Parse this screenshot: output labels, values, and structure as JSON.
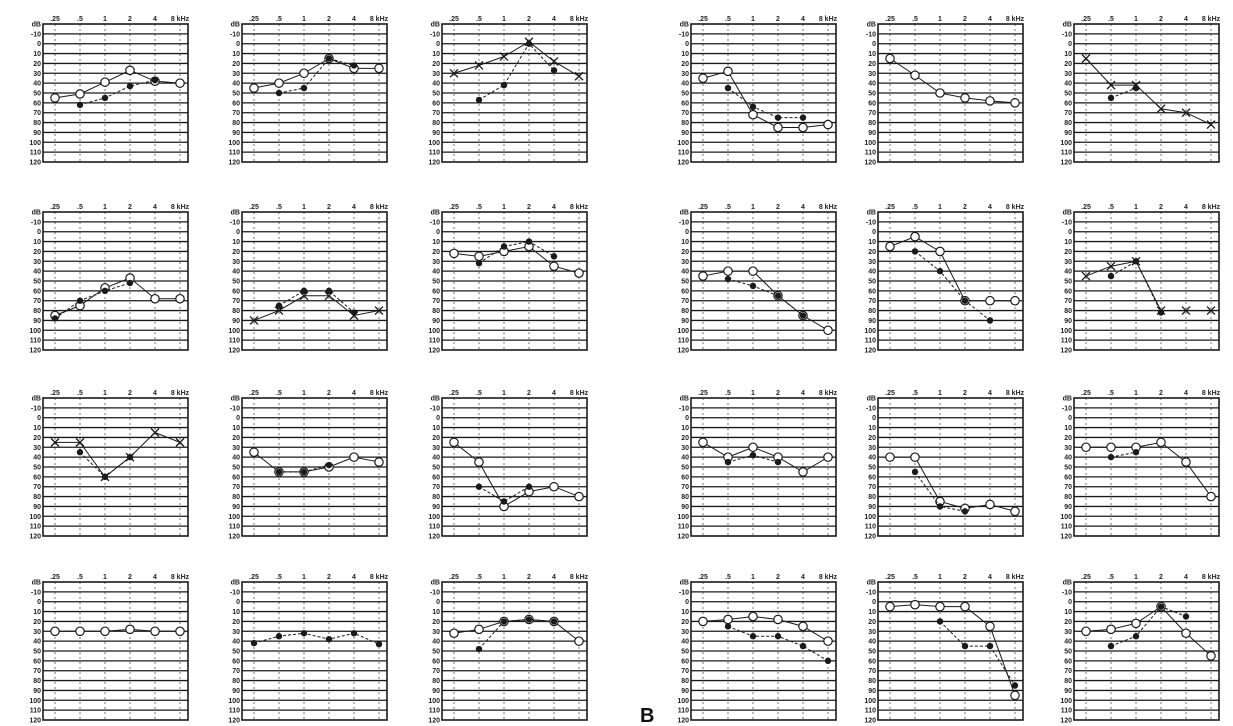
{
  "panel_label": "B",
  "chart_data": {
    "type": "line",
    "grid": true,
    "layout": "4 rows x 6 columns of audiograms",
    "x_unit": "kHz",
    "y_unit": "dB",
    "x_tick_labels": [
      ".25",
      ".5",
      "1",
      "2",
      "4",
      "8 kHz"
    ],
    "y_tick_labels": [
      "dB",
      "-10",
      "0",
      "10",
      "20",
      "30",
      "40",
      "50",
      "60",
      "70",
      "80",
      "90",
      "100",
      "110",
      "120"
    ],
    "ylim": [
      -20,
      120
    ],
    "y_inverted": true,
    "colors": {
      "ink": "#1a1a1a",
      "paper": "#ffffff"
    },
    "audiograms": [
      {
        "series": [
          {
            "marker": "circle",
            "values": [
              55,
              51,
              39,
              27,
              38,
              40
            ]
          },
          {
            "marker": "dot",
            "values": [
              null,
              62,
              55,
              43,
              37,
              null
            ]
          }
        ]
      },
      {
        "series": [
          {
            "marker": "circle",
            "values": [
              45,
              40,
              30,
              15,
              25,
              25
            ]
          },
          {
            "marker": "dot",
            "values": [
              null,
              50,
              45,
              15,
              22,
              null
            ]
          }
        ]
      },
      {
        "series": [
          {
            "marker": "cross",
            "values": [
              30,
              22,
              13,
              -2,
              18,
              33
            ]
          },
          {
            "marker": "dot",
            "values": [
              null,
              57,
              42,
              0,
              27,
              null
            ]
          }
        ]
      },
      {
        "series": [
          {
            "marker": "circle",
            "values": [
              35,
              28,
              72,
              85,
              85,
              82
            ]
          },
          {
            "marker": "dot",
            "values": [
              null,
              45,
              64,
              75,
              75,
              null
            ]
          }
        ]
      },
      {
        "series": [
          {
            "marker": "circle",
            "values": [
              15,
              32,
              50,
              55,
              58,
              60
            ]
          }
        ]
      },
      {
        "series": [
          {
            "marker": "cross",
            "values": [
              15,
              42,
              42,
              66,
              70,
              82
            ]
          },
          {
            "marker": "dot",
            "values": [
              null,
              55,
              45,
              null,
              null,
              null
            ]
          }
        ]
      },
      {
        "series": [
          {
            "marker": "circle",
            "values": [
              85,
              75,
              57,
              47,
              68,
              68
            ]
          },
          {
            "marker": "dot",
            "values": [
              88,
              70,
              60,
              52,
              null,
              null
            ]
          }
        ]
      },
      {
        "series": [
          {
            "marker": "cross",
            "values": [
              90,
              80,
              65,
              65,
              85,
              80
            ]
          },
          {
            "marker": "dot",
            "values": [
              null,
              75,
              60,
              60,
              82,
              null
            ]
          }
        ]
      },
      {
        "series": [
          {
            "marker": "circle",
            "values": [
              22,
              25,
              20,
              15,
              35,
              42
            ]
          },
          {
            "marker": "dot",
            "values": [
              null,
              32,
              15,
              10,
              25,
              null
            ]
          }
        ]
      },
      {
        "series": [
          {
            "marker": "circle",
            "values": [
              45,
              40,
              40,
              65,
              85,
              100
            ]
          },
          {
            "marker": "dot",
            "values": [
              null,
              48,
              55,
              65,
              85,
              null
            ]
          }
        ]
      },
      {
        "series": [
          {
            "marker": "circle",
            "values": [
              15,
              5,
              20,
              70,
              70,
              70
            ]
          },
          {
            "marker": "dot",
            "values": [
              null,
              20,
              40,
              70,
              90,
              null
            ]
          }
        ]
      },
      {
        "series": [
          {
            "marker": "cross",
            "values": [
              45,
              35,
              30,
              80,
              80,
              80
            ]
          },
          {
            "marker": "dot",
            "values": [
              null,
              45,
              30,
              82,
              null,
              null
            ]
          }
        ]
      },
      {
        "series": [
          {
            "marker": "cross",
            "values": [
              25,
              25,
              60,
              40,
              15,
              25
            ]
          },
          {
            "marker": "dot",
            "values": [
              null,
              35,
              60,
              40,
              null,
              null
            ]
          }
        ]
      },
      {
        "series": [
          {
            "marker": "circle",
            "values": [
              35,
              55,
              55,
              50,
              40,
              45
            ]
          },
          {
            "marker": "dot",
            "values": [
              null,
              55,
              55,
              48,
              null,
              null
            ]
          }
        ]
      },
      {
        "series": [
          {
            "marker": "circle",
            "values": [
              25,
              45,
              90,
              75,
              70,
              80
            ]
          },
          {
            "marker": "dot",
            "values": [
              null,
              70,
              85,
              70,
              null,
              null
            ]
          }
        ]
      },
      {
        "series": [
          {
            "marker": "circle",
            "values": [
              25,
              40,
              30,
              40,
              55,
              40
            ]
          },
          {
            "marker": "dot",
            "values": [
              null,
              45,
              38,
              45,
              null,
              null
            ]
          }
        ]
      },
      {
        "series": [
          {
            "marker": "circle",
            "values": [
              40,
              40,
              85,
              92,
              88,
              95
            ]
          },
          {
            "marker": "dot",
            "values": [
              null,
              55,
              90,
              95,
              null,
              null
            ]
          }
        ]
      },
      {
        "series": [
          {
            "marker": "circle",
            "values": [
              30,
              30,
              30,
              25,
              45,
              80
            ]
          },
          {
            "marker": "dot",
            "values": [
              null,
              40,
              35,
              null,
              null,
              null
            ]
          }
        ]
      },
      {
        "series": [
          {
            "marker": "circle",
            "values": [
              30,
              30,
              30,
              28,
              30,
              30
            ]
          }
        ]
      },
      {
        "series": [
          {
            "marker": "dot",
            "values": [
              42,
              35,
              32,
              38,
              32,
              43
            ]
          }
        ]
      },
      {
        "series": [
          {
            "marker": "circle",
            "values": [
              32,
              28,
              20,
              18,
              20,
              40
            ]
          },
          {
            "marker": "dot",
            "values": [
              null,
              48,
              20,
              18,
              20,
              null
            ]
          }
        ]
      },
      {
        "series": [
          {
            "marker": "circle",
            "values": [
              20,
              18,
              15,
              18,
              25,
              40
            ]
          },
          {
            "marker": "dot",
            "values": [
              null,
              25,
              35,
              35,
              45,
              60
            ]
          }
        ]
      },
      {
        "series": [
          {
            "marker": "circle",
            "values": [
              5,
              3,
              5,
              5,
              25,
              95
            ]
          },
          {
            "marker": "dot",
            "values": [
              null,
              null,
              20,
              45,
              45,
              85
            ]
          }
        ]
      },
      {
        "series": [
          {
            "marker": "circle",
            "values": [
              30,
              28,
              22,
              5,
              32,
              55
            ]
          },
          {
            "marker": "dot",
            "values": [
              null,
              45,
              35,
              5,
              15,
              null
            ]
          }
        ]
      }
    ]
  }
}
